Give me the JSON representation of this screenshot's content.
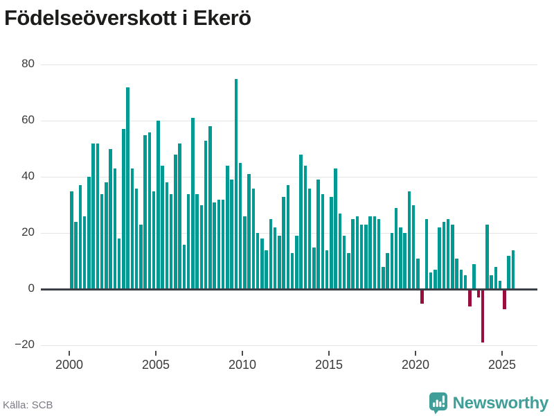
{
  "title": "Födelseöverskott i Ekerö",
  "source": "Källa: SCB",
  "brand": {
    "name": "Newsworthy"
  },
  "colors": {
    "positive_bar": "#009A93",
    "negative_bar": "#970E3F",
    "zero_axis": "#3a4046",
    "gridline": "#e4e4e4",
    "tick_label": "#3a3a3a",
    "title": "#1c1c1a",
    "source_text": "#7a7a85",
    "brand_teal": "#3f9e97",
    "background": "#ffffff"
  },
  "chart_data": {
    "type": "bar",
    "title": "Födelseöverskott i Ekerö",
    "frequency": "quarterly",
    "start_year": 2000,
    "start_quarter": 1,
    "end_year": 2025,
    "end_quarter": 3,
    "values": [
      35,
      24,
      37,
      26,
      40,
      52,
      52,
      34,
      38,
      50,
      43,
      18,
      57,
      72,
      43,
      36,
      23,
      55,
      56,
      35,
      60,
      44,
      38,
      34,
      48,
      52,
      16,
      34,
      61,
      34,
      30,
      53,
      58,
      31,
      32,
      32,
      44,
      39,
      75,
      45,
      26,
      41,
      36,
      20,
      18,
      14,
      25,
      22,
      19,
      33,
      37,
      13,
      19,
      48,
      44,
      36,
      15,
      39,
      34,
      14,
      33,
      43,
      27,
      19,
      13,
      25,
      26,
      23,
      23,
      26,
      26,
      25,
      8,
      13,
      20,
      29,
      22,
      20,
      35,
      30,
      11,
      -5,
      25,
      6,
      7,
      22,
      24,
      25,
      23,
      11,
      7,
      5,
      -6,
      9,
      -3,
      -19,
      23,
      5,
      8,
      3,
      -7,
      12,
      14
    ],
    "y_ticks": [
      80,
      60,
      40,
      20,
      0,
      -20
    ],
    "y_tick_labels": [
      "80",
      "60",
      "40",
      "20",
      "0",
      "−20"
    ],
    "x_tick_years": [
      2000,
      2005,
      2010,
      2015,
      2020,
      2025
    ],
    "x_tick_labels": [
      "2000",
      "2005",
      "2010",
      "2015",
      "2020",
      "2025"
    ],
    "ylim": [
      -20,
      80
    ],
    "grid": true,
    "legend": false,
    "xlabel": "",
    "ylabel": ""
  }
}
